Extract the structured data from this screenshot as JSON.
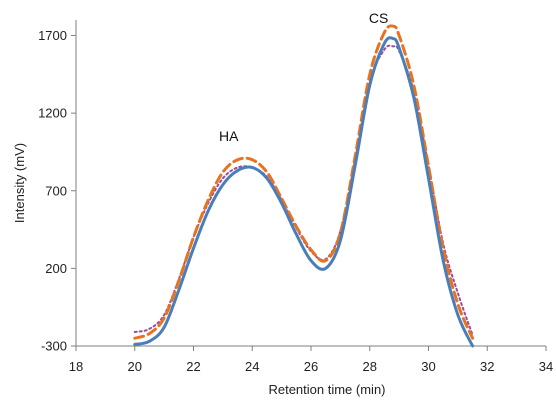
{
  "chart_data": {
    "type": "line",
    "title": "",
    "xlabel": "Retention time (min)",
    "ylabel": "Intensity (mV)",
    "xlim": [
      18,
      34
    ],
    "ylim": [
      -300,
      1800
    ],
    "x_ticks": [
      18,
      20,
      22,
      24,
      26,
      28,
      30,
      32,
      34
    ],
    "y_ticks": [
      -300,
      200,
      700,
      1200,
      1700
    ],
    "grid": false,
    "legend": "none",
    "annotations": [
      {
        "text": "HA",
        "x": 23.2,
        "y": 1020
      },
      {
        "text": "CS",
        "x": 28.3,
        "y": 1780
      }
    ],
    "series": [
      {
        "color": "#4a7ebb",
        "style": "solid",
        "x": [
          20,
          20.5,
          21,
          21.5,
          22,
          22.5,
          23,
          23.5,
          24,
          24.5,
          25,
          25.5,
          26,
          26.5,
          27,
          27.5,
          28,
          28.5,
          28.8,
          29,
          29.5,
          30,
          30.5,
          31,
          31.5
        ],
        "y": [
          -290,
          -270,
          -180,
          60,
          330,
          570,
          740,
          830,
          850,
          780,
          620,
          420,
          250,
          200,
          380,
          860,
          1380,
          1650,
          1680,
          1620,
          1300,
          780,
          250,
          -100,
          -300
        ]
      },
      {
        "color": "#e8731f",
        "style": "dashed",
        "x": [
          20,
          20.5,
          21,
          21.5,
          22,
          22.5,
          23,
          23.5,
          24,
          24.5,
          25,
          25.5,
          26,
          26.5,
          27,
          27.5,
          28,
          28.5,
          28.8,
          29,
          29.5,
          30,
          30.5,
          31,
          31.5
        ],
        "y": [
          -250,
          -220,
          -120,
          120,
          400,
          640,
          820,
          900,
          900,
          820,
          650,
          470,
          320,
          250,
          430,
          920,
          1450,
          1720,
          1760,
          1700,
          1380,
          860,
          330,
          -30,
          -250
        ]
      },
      {
        "color": "#9b4b9e",
        "style": "dotted",
        "x": [
          20,
          20.5,
          21,
          21.5,
          22,
          22.5,
          23,
          23.5,
          24,
          24.5,
          25,
          25.5,
          26,
          26.5,
          27,
          27.5,
          28,
          28.5,
          28.8,
          29,
          29.5,
          30,
          30.5,
          31,
          31.5
        ],
        "y": [
          -210,
          -190,
          -100,
          130,
          400,
          620,
          780,
          850,
          850,
          790,
          640,
          460,
          310,
          260,
          440,
          900,
          1400,
          1610,
          1630,
          1600,
          1340,
          860,
          360,
          40,
          -230
        ]
      }
    ]
  }
}
